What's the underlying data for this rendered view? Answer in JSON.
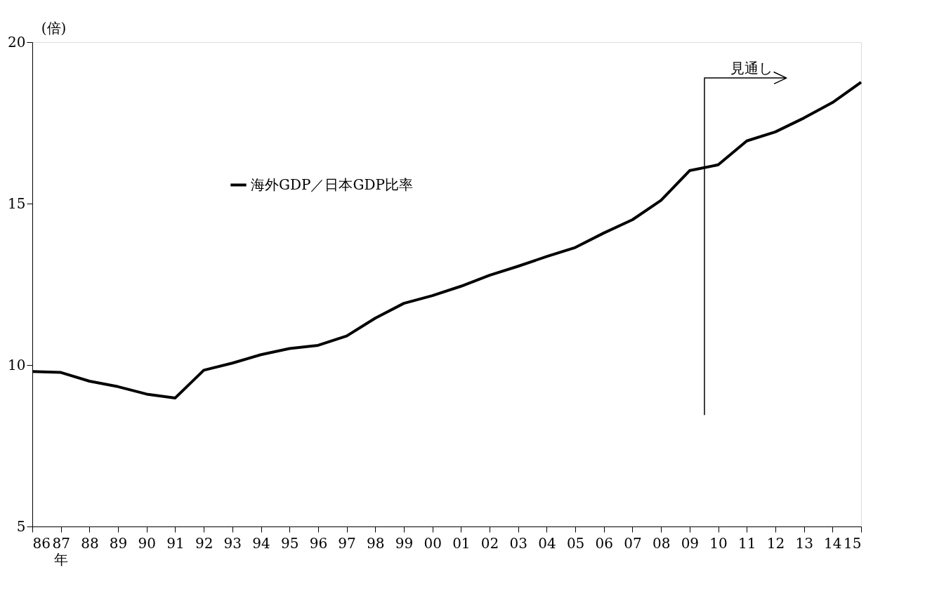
{
  "chart_data": {
    "type": "line",
    "ylabel": "(倍)",
    "xlabel": "年",
    "categories": [
      "86",
      "87",
      "88",
      "89",
      "90",
      "91",
      "92",
      "93",
      "94",
      "95",
      "96",
      "97",
      "98",
      "99",
      "00",
      "01",
      "02",
      "03",
      "04",
      "05",
      "06",
      "07",
      "08",
      "09",
      "10",
      "11",
      "12",
      "13",
      "14",
      "15"
    ],
    "series": [
      {
        "name": "海外GDP／日本GDP比率",
        "color": "#000000",
        "values": [
          9.8,
          9.77,
          9.5,
          9.33,
          9.1,
          8.98,
          9.84,
          10.06,
          10.32,
          10.51,
          10.61,
          10.9,
          11.45,
          11.91,
          12.15,
          12.44,
          12.78,
          13.06,
          13.36,
          13.64,
          14.09,
          14.5,
          15.1,
          16.02,
          16.2,
          16.94,
          17.22,
          17.65,
          18.13,
          18.76
        ]
      }
    ],
    "ylim": [
      5,
      20
    ],
    "yticks": [
      5,
      10,
      15,
      20
    ],
    "grid": false,
    "legend": "top left",
    "marker": "none",
    "line_style": "solid",
    "annotations": [
      "見通し"
    ]
  }
}
